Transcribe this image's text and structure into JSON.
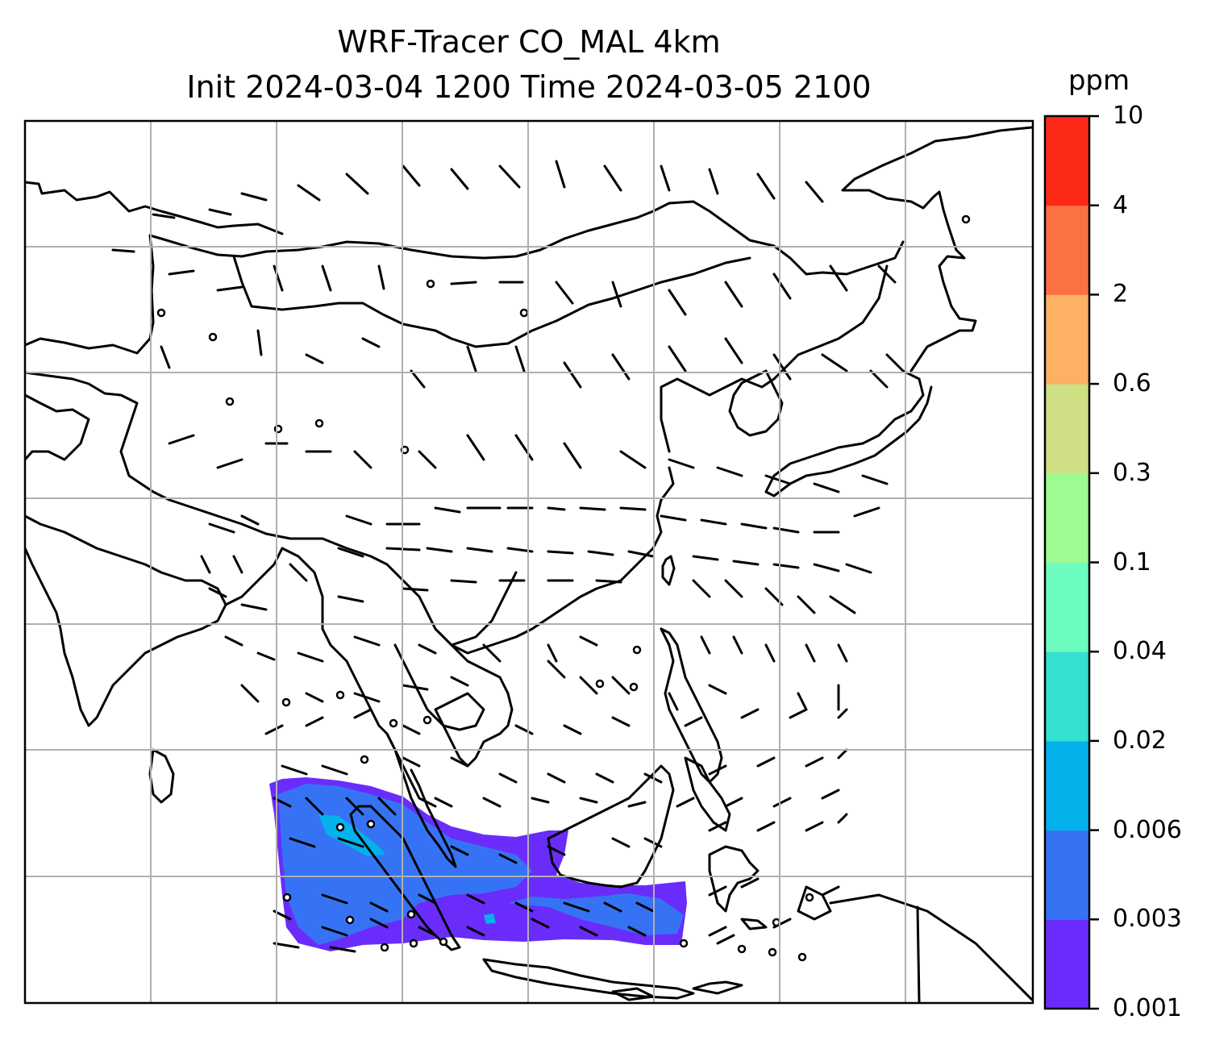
{
  "title": {
    "line1": "WRF-Tracer CO_MAL 4km",
    "line2": "Init 2024-03-04 1200 Time 2024-03-05 2100"
  },
  "colorbar": {
    "unit": "ppm",
    "ticks": [
      "0.001",
      "0.003",
      "0.006",
      "0.02",
      "0.04",
      "0.1",
      "0.3",
      "0.6",
      "2",
      "4",
      "10"
    ],
    "colors": [
      "#6a2cfb",
      "#3673f4",
      "#03b2ea",
      "#34e0d0",
      "#6cfcc0",
      "#9efb92",
      "#cfe084",
      "#fcb163",
      "#fc7141",
      "#fc2a17"
    ]
  },
  "map": {
    "gridline_color": "#b0b0b0",
    "coastline_color": "#000000",
    "plume_note_colors": {
      "low": "#6a2cfb",
      "mid": "#3673f4",
      "high": "#03b2ea"
    }
  }
}
